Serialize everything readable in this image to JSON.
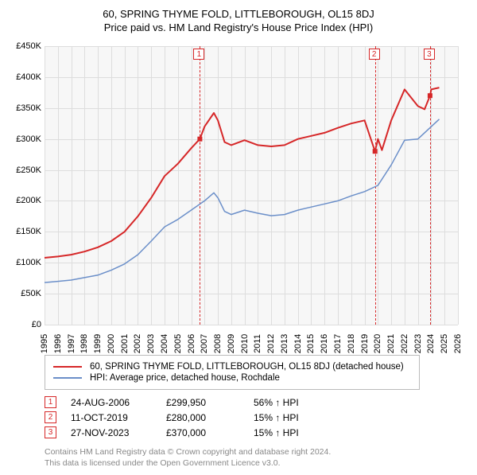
{
  "title": "60, SPRING THYME FOLD, LITTLEBOROUGH, OL15 8DJ",
  "subtitle": "Price paid vs. HM Land Registry's House Price Index (HPI)",
  "chart": {
    "type": "line",
    "background_color": "#f7f7f7",
    "grid_color": "#dddddd",
    "x_axis": {
      "min": 1995,
      "max": 2026,
      "ticks": [
        1995,
        1996,
        1997,
        1998,
        1999,
        2000,
        2001,
        2002,
        2003,
        2004,
        2005,
        2006,
        2007,
        2008,
        2009,
        2010,
        2011,
        2012,
        2013,
        2014,
        2015,
        2016,
        2017,
        2018,
        2019,
        2020,
        2021,
        2022,
        2023,
        2024,
        2025,
        2026
      ],
      "fontsize": 11
    },
    "y_axis": {
      "min": 0,
      "max": 450000,
      "ticks": [
        0,
        50000,
        100000,
        150000,
        200000,
        250000,
        300000,
        350000,
        400000,
        450000
      ],
      "tick_labels": [
        "£0",
        "£50K",
        "£100K",
        "£150K",
        "£200K",
        "£250K",
        "£300K",
        "£350K",
        "£400K",
        "£450K"
      ],
      "fontsize": 11
    },
    "series": [
      {
        "name": "property",
        "label": "60, SPRING THYME FOLD, LITTLEBOROUGH, OL15 8DJ (detached house)",
        "color": "#d62728",
        "line_width": 2,
        "x": [
          1995,
          1996,
          1997,
          1998,
          1999,
          2000,
          2001,
          2002,
          2003,
          2004,
          2005,
          2006,
          2006.65,
          2007,
          2007.7,
          2008,
          2008.5,
          2009,
          2010,
          2011,
          2012,
          2013,
          2014,
          2015,
          2016,
          2017,
          2018,
          2019,
          2019.78,
          2020,
          2020.3,
          2021,
          2022,
          2023,
          2023.5,
          2023.91,
          2024,
          2024.6
        ],
        "y": [
          108000,
          110000,
          113000,
          118000,
          125000,
          135000,
          150000,
          175000,
          205000,
          240000,
          260000,
          285000,
          299950,
          320000,
          342000,
          330000,
          295000,
          290000,
          298000,
          290000,
          288000,
          290000,
          300000,
          305000,
          310000,
          318000,
          325000,
          330000,
          280000,
          300000,
          282000,
          330000,
          380000,
          353000,
          348000,
          370000,
          380000,
          383000
        ]
      },
      {
        "name": "hpi",
        "label": "HPI: Average price, detached house, Rochdale",
        "color": "#6b8fc9",
        "line_width": 1.5,
        "x": [
          1995,
          1996,
          1997,
          1998,
          1999,
          2000,
          2001,
          2002,
          2003,
          2004,
          2005,
          2006,
          2007,
          2007.7,
          2008,
          2008.5,
          2009,
          2010,
          2011,
          2012,
          2013,
          2014,
          2015,
          2016,
          2017,
          2018,
          2019,
          2020,
          2021,
          2022,
          2023,
          2024,
          2024.6
        ],
        "y": [
          68000,
          70000,
          72000,
          76000,
          80000,
          88000,
          98000,
          113000,
          135000,
          158000,
          170000,
          185000,
          200000,
          213000,
          205000,
          183000,
          178000,
          185000,
          180000,
          176000,
          178000,
          185000,
          190000,
          195000,
          200000,
          208000,
          215000,
          225000,
          258000,
          298000,
          300000,
          320000,
          332000
        ]
      }
    ],
    "markers": [
      {
        "n": "1",
        "year": 2006.65,
        "y": 299950,
        "color": "#d62728"
      },
      {
        "n": "2",
        "year": 2019.78,
        "y": 280000,
        "color": "#d62728"
      },
      {
        "n": "3",
        "year": 2023.91,
        "y": 370000,
        "color": "#d62728"
      }
    ],
    "marker_line_color": "#d62728"
  },
  "legend": {
    "items": [
      {
        "color": "#d62728",
        "thick": 2,
        "label": "60, SPRING THYME FOLD, LITTLEBOROUGH, OL15 8DJ (detached house)"
      },
      {
        "color": "#6b8fc9",
        "thick": 1.5,
        "label": "HPI: Average price, detached house, Rochdale"
      }
    ]
  },
  "sales": [
    {
      "n": "1",
      "date": "24-AUG-2006",
      "price": "£299,950",
      "pct": "56% ↑ HPI"
    },
    {
      "n": "2",
      "date": "11-OCT-2019",
      "price": "£280,000",
      "pct": "15% ↑ HPI"
    },
    {
      "n": "3",
      "date": "27-NOV-2023",
      "price": "£370,000",
      "pct": "15% ↑ HPI"
    }
  ],
  "footer": {
    "line1": "Contains HM Land Registry data © Crown copyright and database right 2024.",
    "line2": "This data is licensed under the Open Government Licence v3.0."
  },
  "colors": {
    "marker_border": "#d62728",
    "text": "#000000",
    "footer": "#888888"
  }
}
